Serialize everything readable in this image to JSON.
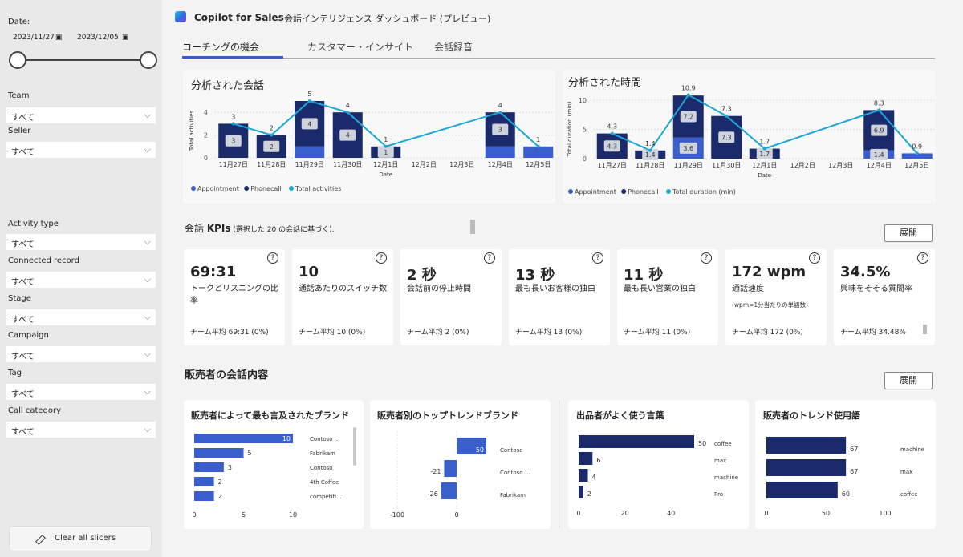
{
  "sidebar": {
    "date_label": "Date:",
    "date_start": "2023/11/27",
    "date_end": "2023/12/05",
    "slicers": [
      {
        "label": "Team",
        "value": "すべて"
      },
      {
        "label": "Seller",
        "value": "すべて"
      },
      {
        "label": "Activity type",
        "value": "すべて"
      },
      {
        "label": "Connected record",
        "value": "すべて"
      },
      {
        "label": "Stage",
        "value": "すべて"
      },
      {
        "label": "Campaign",
        "value": "すべて"
      },
      {
        "label": "Tag",
        "value": "すべて"
      },
      {
        "label": "Call category",
        "value": "すべて"
      }
    ],
    "clear_label": "Clear all slicers"
  },
  "header": {
    "app_name": "Copilot for Sales",
    "dashboard_title": "会話インテリジェンス ダッシュボード (プレビュー)"
  },
  "tabs": [
    "コーチングの機会",
    "カスタマー・インサイト",
    "会話録音"
  ],
  "kpi_section": {
    "title_prefix": "会話 ",
    "title_bold": "KPIs",
    "title_suffix": " (選択した 20 の会話に基づく).",
    "expand_label": "展開"
  },
  "kpis": [
    {
      "value": "69:31",
      "desc": "トークとリスニングの比率",
      "sub": "",
      "foot": "チーム平均 69:31  (0%)"
    },
    {
      "value": "10",
      "desc": "通話あたりのスイッチ数",
      "sub": "",
      "foot": "チーム平均 10  (0%)"
    },
    {
      "value": "2 秒",
      "desc": "会話前の停止時間",
      "sub": "",
      "foot": "チーム平均 2 (0%)"
    },
    {
      "value": "13 秒",
      "desc": "最も長いお客様の独白",
      "sub": "",
      "foot": "チーム平均 13  (0%)"
    },
    {
      "value": "11 秒",
      "desc": "最も長い営業の独白",
      "sub": "",
      "foot": "チーム平均 11  (0%)"
    },
    {
      "value": "172 wpm",
      "desc": "通話速度",
      "sub": "(wpm=1分当たりの単語数)",
      "foot": "チーム平均 172  (0%)"
    },
    {
      "value": "34.5%",
      "desc": "興味をそそる質問率",
      "sub": "",
      "foot": "チーム平均 34.48%"
    }
  ],
  "seller_section": {
    "title": "販売者の会話内容",
    "expand_label": "展開"
  },
  "colors": {
    "appointment": "#3a5fcd",
    "phonecall": "#1b2a6b",
    "total": "#1ca7d8"
  },
  "chart_data": [
    {
      "type": "bar",
      "title": "分析された会話",
      "xlabel": "Date",
      "ylabel": "Total activities",
      "categories": [
        "11月27日",
        "11月28日",
        "11月29日",
        "11月30日",
        "12月1日",
        "12月2日",
        "12月3日",
        "12月4日",
        "12月5日"
      ],
      "series": [
        {
          "name": "Appointment",
          "values": [
            0,
            0,
            1,
            0,
            0,
            0,
            0,
            1,
            1
          ]
        },
        {
          "name": "Phonecall",
          "values": [
            3,
            2,
            4,
            4,
            1,
            0,
            0,
            3,
            0
          ]
        },
        {
          "name": "Total activities",
          "values": [
            3,
            2,
            5,
            4,
            1,
            null,
            null,
            4,
            1
          ]
        }
      ],
      "ylim": [
        0,
        5
      ],
      "yticks": [
        0,
        2,
        4
      ],
      "legend": [
        "Appointment",
        "Phonecall",
        "Total activities"
      ]
    },
    {
      "type": "bar",
      "title": "分析された時間",
      "xlabel": "Date",
      "ylabel": "Total duration (min)",
      "categories": [
        "11月27日",
        "11月28日",
        "11月29日",
        "11月30日",
        "12月1日",
        "12月2日",
        "12月3日",
        "12月4日",
        "12月5日"
      ],
      "series": [
        {
          "name": "Appointment",
          "values": [
            0,
            0,
            3.6,
            0,
            0,
            0,
            0,
            1.4,
            0.9
          ]
        },
        {
          "name": "Phonecall",
          "values": [
            4.3,
            1.4,
            7.2,
            7.3,
            1.7,
            0,
            0,
            6.9,
            0
          ]
        },
        {
          "name": "Total duration (min)",
          "values": [
            4.3,
            1.4,
            10.9,
            7.3,
            1.7,
            null,
            null,
            8.3,
            0.9
          ]
        }
      ],
      "ylim": [
        0,
        11
      ],
      "yticks": [
        0,
        5,
        10
      ],
      "legend": [
        "Appointment",
        "Phonecall",
        "Total duration (min)"
      ]
    },
    {
      "type": "bar",
      "title": "販売者によって最も言及されたブランド",
      "categories": [
        "Contoso ...",
        "Fabrikam",
        "Contoso",
        "4th Coffee",
        "competiti..."
      ],
      "values": [
        10,
        5,
        3,
        2,
        2
      ],
      "xticks": [
        0,
        5,
        10
      ],
      "xlim": [
        0,
        10
      ]
    },
    {
      "type": "bar",
      "title": "販売者別のトップトレンドブランド",
      "categories": [
        "Contoso",
        "Contoso ...",
        "Fabrikam"
      ],
      "values": [
        50,
        -21,
        -26
      ],
      "xticks": [
        -100,
        0
      ],
      "xlim": [
        -100,
        50
      ]
    },
    {
      "type": "bar",
      "title": "出品者がよく使う言葉",
      "categories": [
        "coffee",
        "max",
        "machine",
        "Pro"
      ],
      "values": [
        50,
        6,
        4,
        2
      ],
      "xticks": [
        0,
        20,
        40
      ],
      "xlim": [
        0,
        50
      ]
    },
    {
      "type": "bar",
      "title": "販売者のトレンド使用語",
      "categories": [
        "machine",
        "max",
        "coffee"
      ],
      "values": [
        67,
        67,
        60
      ],
      "xticks": [
        0,
        50,
        100
      ],
      "xlim": [
        0,
        100
      ]
    }
  ]
}
